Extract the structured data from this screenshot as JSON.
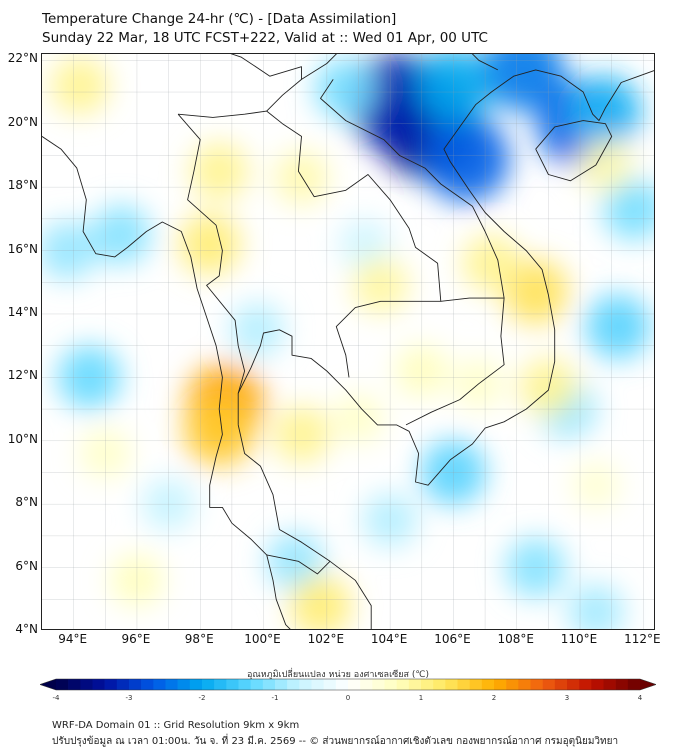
{
  "header": {
    "title_line1": "Temperature Change 24-hr (℃) - [Data Assimilation]",
    "title_line2": "Sunday 22 Mar, 18 UTC FCST+222, Valid at :: Wed 01 Apr, 00 UTC"
  },
  "map": {
    "lat_labels": [
      "22°N",
      "20°N",
      "18°N",
      "16°N",
      "14°N",
      "12°N",
      "10°N",
      "8°N",
      "6°N",
      "4°N"
    ],
    "lon_labels": [
      "94°E",
      "96°E",
      "98°E",
      "100°E",
      "102°E",
      "104°E",
      "106°E",
      "108°E",
      "110°E",
      "112°E"
    ],
    "lat_range": [
      4,
      22.2
    ],
    "lon_range": [
      93,
      112.4
    ],
    "field_blobs": [
      {
        "lon": 105.2,
        "lat": 19.9,
        "value": -3.5
      },
      {
        "lon": 104.2,
        "lat": 20.7,
        "value": -3.2
      },
      {
        "lon": 106.4,
        "lat": 18.9,
        "value": -2.6
      },
      {
        "lon": 108.2,
        "lat": 21.7,
        "value": -2.4
      },
      {
        "lon": 110.0,
        "lat": 20.0,
        "value": -2.6
      },
      {
        "lon": 110.8,
        "lat": 20.4,
        "value": -1.8
      },
      {
        "lon": 106.0,
        "lat": 21.2,
        "value": -2.0
      },
      {
        "lon": 102.6,
        "lat": 21.1,
        "value": -1.2
      },
      {
        "lon": 94.5,
        "lat": 12.0,
        "value": -1.3
      },
      {
        "lon": 95.5,
        "lat": 16.5,
        "value": -1.1
      },
      {
        "lon": 93.8,
        "lat": 16.0,
        "value": -1.0
      },
      {
        "lon": 111.7,
        "lat": 17.3,
        "value": -1.2
      },
      {
        "lon": 111.2,
        "lat": 13.6,
        "value": -1.4
      },
      {
        "lon": 109.6,
        "lat": 11.0,
        "value": -1.0
      },
      {
        "lon": 106.0,
        "lat": 9.0,
        "value": -1.4
      },
      {
        "lon": 108.6,
        "lat": 6.0,
        "value": -1.1
      },
      {
        "lon": 104.0,
        "lat": 7.5,
        "value": -0.8
      },
      {
        "lon": 101.0,
        "lat": 6.2,
        "value": -1.0
      },
      {
        "lon": 99.8,
        "lat": 13.5,
        "value": -0.8
      },
      {
        "lon": 103.2,
        "lat": 16.2,
        "value": -0.6
      },
      {
        "lon": 97.0,
        "lat": 8.0,
        "value": -0.7
      },
      {
        "lon": 110.5,
        "lat": 4.6,
        "value": -0.9
      },
      {
        "lon": 98.8,
        "lat": 11.2,
        "value": 2.1
      },
      {
        "lon": 98.6,
        "lat": 10.3,
        "value": 1.7
      },
      {
        "lon": 98.3,
        "lat": 16.2,
        "value": 1.2
      },
      {
        "lon": 98.6,
        "lat": 18.5,
        "value": 1.0
      },
      {
        "lon": 101.2,
        "lat": 18.3,
        "value": 0.8
      },
      {
        "lon": 94.2,
        "lat": 21.2,
        "value": 1.0
      },
      {
        "lon": 108.6,
        "lat": 14.7,
        "value": 1.4
      },
      {
        "lon": 107.2,
        "lat": 15.6,
        "value": 1.0
      },
      {
        "lon": 103.7,
        "lat": 14.9,
        "value": 0.9
      },
      {
        "lon": 101.2,
        "lat": 10.2,
        "value": 1.0
      },
      {
        "lon": 101.8,
        "lat": 4.8,
        "value": 1.2
      },
      {
        "lon": 109.0,
        "lat": 11.7,
        "value": 1.0
      },
      {
        "lon": 110.8,
        "lat": 18.7,
        "value": 0.8
      },
      {
        "lon": 105.0,
        "lat": 12.2,
        "value": 0.7
      },
      {
        "lon": 95.0,
        "lat": 9.6,
        "value": 0.6
      },
      {
        "lon": 96.0,
        "lat": 5.6,
        "value": 0.7
      },
      {
        "lon": 103.0,
        "lat": 10.7,
        "value": 0.6
      },
      {
        "lon": 110.5,
        "lat": 8.6,
        "value": 0.5
      },
      {
        "lon": 106.8,
        "lat": 11.8,
        "value": 0.6
      }
    ]
  },
  "colorbar": {
    "title": "อุณหภูมิเปลี่ยนแปลง หน่วย องศาเซลเซียส (℃)",
    "range": [
      -4,
      4
    ],
    "ticks": [
      "-4",
      "-3",
      "-2",
      "-1",
      "0",
      "1",
      "2",
      "3",
      "4"
    ],
    "colors": [
      "#00004a",
      "#0010a0",
      "#0058e6",
      "#00a8f0",
      "#5fd8ff",
      "#c8f4ff",
      "#ffffff",
      "#ffffc0",
      "#ffe860",
      "#ffb000",
      "#f06010",
      "#c01000",
      "#6a0000"
    ]
  },
  "footer": {
    "line1": "WRF-DA Domain 01 :: Grid Resolution 9km x 9km",
    "line2": "ปรับปรุงข้อมูล ณ เวลา 01:00น. วัน จ. ที่ 23 มี.ค. 2569 -- © ส่วนพยากรณ์อากาศเชิงตัวเลข กองพยากรณ์อากาศ กรมอุตุนิยมวิทยา"
  }
}
